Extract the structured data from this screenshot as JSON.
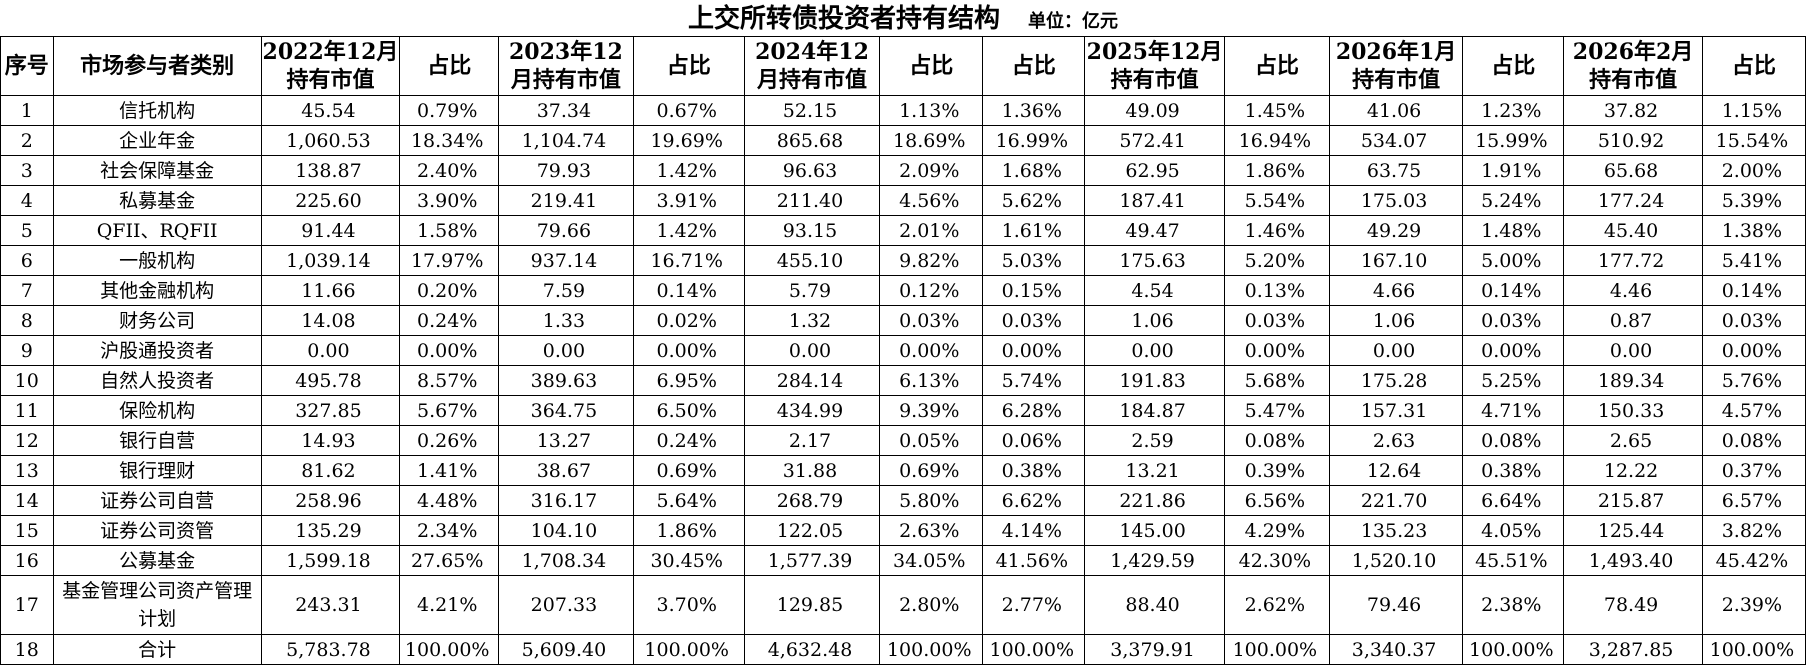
{
  "title": "上交所转债投资者持有结构",
  "unit": "单位：亿元",
  "headers": [
    "序号",
    "市场参与者类别",
    "2022年12月持有市值",
    "占比",
    "2023年12月持有市值",
    "占比",
    "2024年12月持有市值",
    "占比",
    "占比",
    "2025年12月持有市值",
    "占比",
    "2026年1月持有市值",
    "占比",
    "2026年2月持有市值",
    "占比"
  ],
  "rows": [
    [
      "1",
      "信托机构",
      "45.54",
      "0.79%",
      "37.34",
      "0.67%",
      "52.15",
      "1.13%",
      "1.36%",
      "49.09",
      "1.45%",
      "41.06",
      "1.23%",
      "37.82",
      "1.15%"
    ],
    [
      "2",
      "企业年金",
      "1,060.53",
      "18.34%",
      "1,104.74",
      "19.69%",
      "865.68",
      "18.69%",
      "16.99%",
      "572.41",
      "16.94%",
      "534.07",
      "15.99%",
      "510.92",
      "15.54%"
    ],
    [
      "3",
      "社会保障基金",
      "138.87",
      "2.40%",
      "79.93",
      "1.42%",
      "96.63",
      "2.09%",
      "1.68%",
      "62.95",
      "1.86%",
      "63.75",
      "1.91%",
      "65.68",
      "2.00%"
    ],
    [
      "4",
      "私募基金",
      "225.60",
      "3.90%",
      "219.41",
      "3.91%",
      "211.40",
      "4.56%",
      "5.62%",
      "187.41",
      "5.54%",
      "175.03",
      "5.24%",
      "177.24",
      "5.39%"
    ],
    [
      "5",
      "QFII、RQFII",
      "91.44",
      "1.58%",
      "79.66",
      "1.42%",
      "93.15",
      "2.01%",
      "1.61%",
      "49.47",
      "1.46%",
      "49.29",
      "1.48%",
      "45.40",
      "1.38%"
    ],
    [
      "6",
      "一般机构",
      "1,039.14",
      "17.97%",
      "937.14",
      "16.71%",
      "455.10",
      "9.82%",
      "5.03%",
      "175.63",
      "5.20%",
      "167.10",
      "5.00%",
      "177.72",
      "5.41%"
    ],
    [
      "7",
      "其他金融机构",
      "11.66",
      "0.20%",
      "7.59",
      "0.14%",
      "5.79",
      "0.12%",
      "0.15%",
      "4.54",
      "0.13%",
      "4.66",
      "0.14%",
      "4.46",
      "0.14%"
    ],
    [
      "8",
      "财务公司",
      "14.08",
      "0.24%",
      "1.33",
      "0.02%",
      "1.32",
      "0.03%",
      "0.03%",
      "1.06",
      "0.03%",
      "1.06",
      "0.03%",
      "0.87",
      "0.03%"
    ],
    [
      "9",
      "沪股通投资者",
      "0.00",
      "0.00%",
      "0.00",
      "0.00%",
      "0.00",
      "0.00%",
      "0.00%",
      "0.00",
      "0.00%",
      "0.00",
      "0.00%",
      "0.00",
      "0.00%"
    ],
    [
      "10",
      "自然人投资者",
      "495.78",
      "8.57%",
      "389.63",
      "6.95%",
      "284.14",
      "6.13%",
      "5.74%",
      "191.83",
      "5.68%",
      "175.28",
      "5.25%",
      "189.34",
      "5.76%"
    ],
    [
      "11",
      "保险机构",
      "327.85",
      "5.67%",
      "364.75",
      "6.50%",
      "434.99",
      "9.39%",
      "6.28%",
      "184.87",
      "5.47%",
      "157.31",
      "4.71%",
      "150.33",
      "4.57%"
    ],
    [
      "12",
      "银行自营",
      "14.93",
      "0.26%",
      "13.27",
      "0.24%",
      "2.17",
      "0.05%",
      "0.06%",
      "2.59",
      "0.08%",
      "2.63",
      "0.08%",
      "2.65",
      "0.08%"
    ],
    [
      "13",
      "银行理财",
      "81.62",
      "1.41%",
      "38.67",
      "0.69%",
      "31.88",
      "0.69%",
      "0.38%",
      "13.21",
      "0.39%",
      "12.64",
      "0.38%",
      "12.22",
      "0.37%"
    ],
    [
      "14",
      "证券公司自营",
      "258.96",
      "4.48%",
      "316.17",
      "5.64%",
      "268.79",
      "5.80%",
      "6.62%",
      "221.86",
      "6.56%",
      "221.70",
      "6.64%",
      "215.87",
      "6.57%"
    ],
    [
      "15",
      "证券公司资管",
      "135.29",
      "2.34%",
      "104.10",
      "1.86%",
      "122.05",
      "2.63%",
      "4.14%",
      "145.00",
      "4.29%",
      "135.23",
      "4.05%",
      "125.44",
      "3.82%"
    ],
    [
      "16",
      "公募基金",
      "1,599.18",
      "27.65%",
      "1,708.34",
      "30.45%",
      "1,577.39",
      "34.05%",
      "41.56%",
      "1,429.59",
      "42.30%",
      "1,520.10",
      "45.51%",
      "1,493.40",
      "45.42%"
    ],
    [
      "17",
      "基金管理公司资产管理计划",
      "243.31",
      "4.21%",
      "207.33",
      "3.70%",
      "129.85",
      "2.80%",
      "2.77%",
      "88.40",
      "2.62%",
      "79.46",
      "2.38%",
      "78.49",
      "2.39%"
    ],
    [
      "18",
      "合计",
      "5,783.78",
      "100.00%",
      "5,609.40",
      "100.00%",
      "4,632.48",
      "100.00%",
      "100.00%",
      "3,379.91",
      "100.00%",
      "3,340.37",
      "100.00%",
      "3,287.85",
      "100.00%"
    ]
  ]
}
